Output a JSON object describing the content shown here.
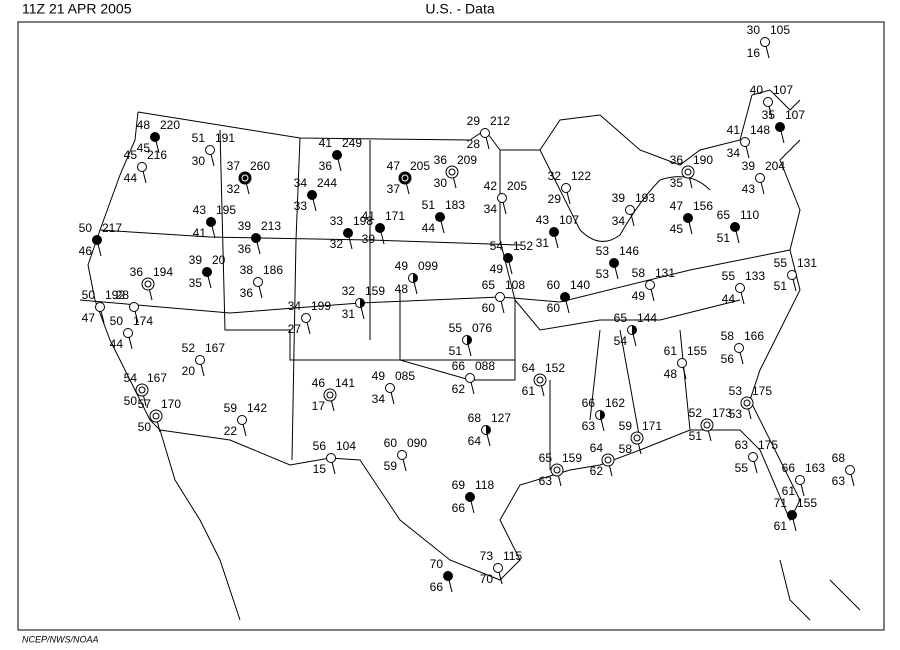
{
  "header": {
    "time": "11Z  21 APR 2005",
    "title": "U.S. -  Data"
  },
  "footer": "NCEP/NWS/NOAA",
  "stations": [
    {
      "temp": "48",
      "pressure": "220",
      "dewpoint": "45"
    },
    {
      "temp": "45",
      "pressure": "216",
      "dewpoint": "44"
    },
    {
      "temp": "51",
      "pressure": "191",
      "dewpoint": "30"
    },
    {
      "temp": "37",
      "pressure": "260",
      "dewpoint": "32"
    },
    {
      "temp": "41",
      "pressure": "249",
      "dewpoint": "36"
    },
    {
      "temp": "34",
      "pressure": "244",
      "dewpoint": "33"
    },
    {
      "temp": "47",
      "pressure": "205",
      "dewpoint": "37"
    },
    {
      "temp": "36",
      "pressure": "209",
      "dewpoint": "30"
    },
    {
      "temp": "29",
      "pressure": "212",
      "dewpoint": "28"
    },
    {
      "temp": "42",
      "pressure": "205",
      "dewpoint": "34"
    },
    {
      "temp": "32",
      "pressure": "122",
      "dewpoint": "29"
    },
    {
      "temp": "51",
      "pressure": "183",
      "dewpoint": "44"
    },
    {
      "temp": "41",
      "pressure": "171",
      "dewpoint": "39"
    },
    {
      "temp": "43",
      "pressure": "195",
      "dewpoint": "41"
    },
    {
      "temp": "39",
      "pressure": "213",
      "dewpoint": "36"
    },
    {
      "temp": "50",
      "pressure": "217",
      "dewpoint": "46"
    },
    {
      "temp": "33",
      "pressure": "198",
      "dewpoint": "32"
    },
    {
      "temp": "39",
      "pressure": "20",
      "dewpoint": "35"
    },
    {
      "temp": "38",
      "pressure": "186",
      "dewpoint": "36"
    },
    {
      "temp": "36",
      "pressure": "194"
    },
    {
      "temp": "50",
      "pressure": "192",
      "dewpoint": "47"
    },
    {
      "temp": "28"
    },
    {
      "temp": "50",
      "pressure": "174",
      "dewpoint": "44"
    },
    {
      "temp": "52",
      "pressure": "167",
      "dewpoint": "20"
    },
    {
      "temp": "54",
      "pressure": "167",
      "dewpoint": "50"
    },
    {
      "temp": "57",
      "pressure": "170",
      "dewpoint": "50"
    },
    {
      "temp": "59",
      "pressure": "142",
      "dewpoint": "22"
    },
    {
      "temp": "34",
      "pressure": "199",
      "dewpoint": "27"
    },
    {
      "temp": "32",
      "pressure": "159",
      "dewpoint": "31"
    },
    {
      "temp": "49",
      "pressure": "099",
      "dewpoint": "48"
    },
    {
      "temp": "65",
      "pressure": "108",
      "dewpoint": "60"
    },
    {
      "temp": "60",
      "pressure": "140",
      "dewpoint": "60"
    },
    {
      "temp": "54",
      "pressure": "152",
      "dewpoint": "49"
    },
    {
      "temp": "43",
      "pressure": "107",
      "dewpoint": "31"
    },
    {
      "temp": "53",
      "pressure": "146",
      "dewpoint": "53"
    },
    {
      "temp": "39",
      "pressure": "193",
      "dewpoint": "34"
    },
    {
      "temp": "47",
      "pressure": "156",
      "dewpoint": "45"
    },
    {
      "temp": "36",
      "pressure": "190",
      "dewpoint": "35"
    },
    {
      "temp": "58",
      "pressure": "131",
      "dewpoint": "49"
    },
    {
      "temp": "65",
      "pressure": "144",
      "dewpoint": "54"
    },
    {
      "temp": "65",
      "pressure": "110",
      "dewpoint": "51"
    },
    {
      "temp": "40",
      "pressure": "107"
    },
    {
      "temp": "35",
      "pressure": "107"
    },
    {
      "temp": "41",
      "pressure": "148",
      "dewpoint": "34"
    },
    {
      "temp": "39",
      "pressure": "204",
      "dewpoint": "43"
    },
    {
      "temp": "30",
      "pressure": "105",
      "dewpoint": "16"
    },
    {
      "temp": "55",
      "pressure": "131",
      "dewpoint": "51"
    },
    {
      "temp": "55",
      "pressure": "133",
      "dewpoint": "44"
    },
    {
      "temp": "58",
      "pressure": "166",
      "dewpoint": "56"
    },
    {
      "temp": "61",
      "pressure": "155",
      "dewpoint": "48"
    },
    {
      "temp": "53",
      "pressure": "175",
      "dewpoint": "53"
    },
    {
      "temp": "52",
      "pressure": "173",
      "dewpoint": "51"
    },
    {
      "temp": "63",
      "pressure": "175",
      "dewpoint": "55"
    },
    {
      "temp": "66",
      "pressure": "163",
      "dewpoint": "61"
    },
    {
      "temp": "71",
      "pressure": "155",
      "dewpoint": "61"
    },
    {
      "temp": "68",
      "dewpoint": "63"
    },
    {
      "temp": "59",
      "pressure": "171",
      "dewpoint": "58"
    },
    {
      "temp": "64",
      "dewpoint": "62"
    },
    {
      "temp": "65",
      "pressure": "159",
      "dewpoint": "63"
    },
    {
      "temp": "66",
      "pressure": "162",
      "dewpoint": "63"
    },
    {
      "temp": "64",
      "pressure": "152",
      "dewpoint": "61"
    },
    {
      "temp": "68",
      "pressure": "127",
      "dewpoint": "64"
    },
    {
      "temp": "66",
      "pressure": "088",
      "dewpoint": "62"
    },
    {
      "temp": "55",
      "pressure": "076",
      "dewpoint": "51"
    },
    {
      "temp": "46",
      "pressure": "141",
      "dewpoint": "17"
    },
    {
      "temp": "49",
      "pressure": "085",
      "dewpoint": "34"
    },
    {
      "temp": "60",
      "pressure": "090",
      "dewpoint": "59"
    },
    {
      "temp": "56",
      "pressure": "104",
      "dewpoint": "15"
    },
    {
      "temp": "69",
      "pressure": "118",
      "dewpoint": "66"
    },
    {
      "temp": "73",
      "pressure": "115",
      "dewpoint": "70"
    },
    {
      "temp": "70",
      "dewpoint": "66"
    }
  ]
}
